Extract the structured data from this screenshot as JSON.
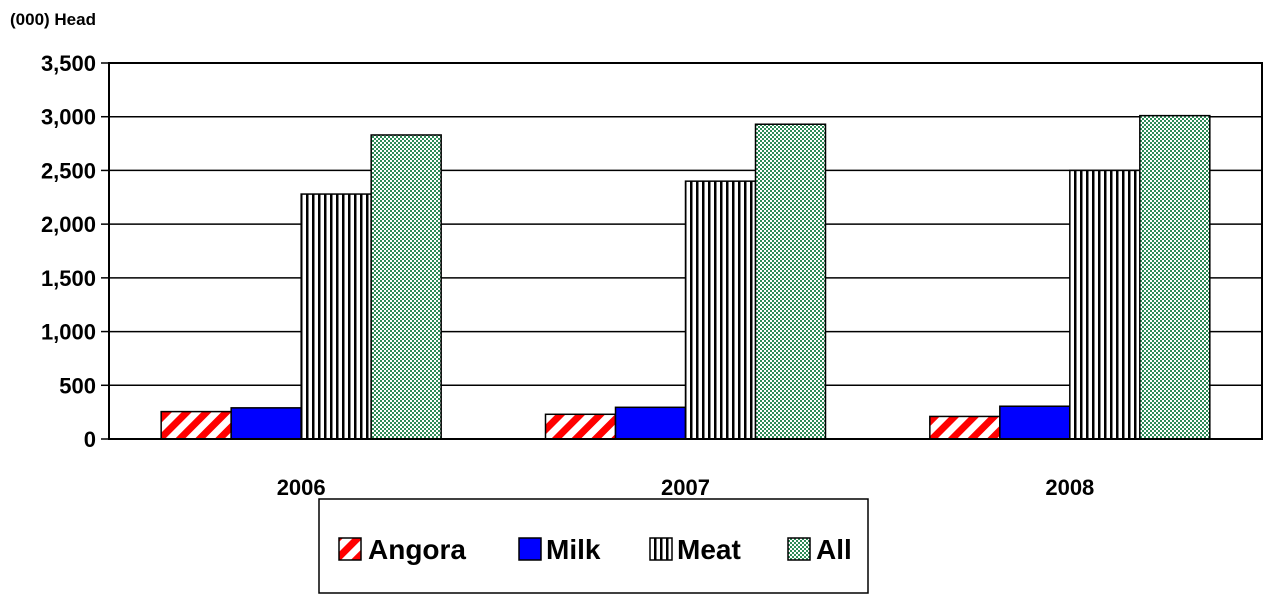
{
  "chart_data": {
    "type": "bar",
    "unit_label": "(000) Head",
    "categories": [
      "2006",
      "2007",
      "2008"
    ],
    "series": [
      {
        "name": "Angora",
        "values": [
          255,
          230,
          210
        ],
        "color": "#ff0000",
        "pattern": "diagonal-stripes"
      },
      {
        "name": "Milk",
        "values": [
          290,
          295,
          305
        ],
        "color": "#0000ff",
        "pattern": "solid"
      },
      {
        "name": "Meat",
        "values": [
          2280,
          2400,
          2500
        ],
        "color": "#000000",
        "pattern": "vertical-stripes"
      },
      {
        "name": "All",
        "values": [
          2830,
          2930,
          3010
        ],
        "color": "#2e8b57",
        "pattern": "checkerboard"
      }
    ],
    "ylim": [
      0,
      3500
    ],
    "yticks": [
      0,
      500,
      1000,
      1500,
      2000,
      2500,
      3000,
      3500
    ],
    "ytick_labels": [
      "0",
      "500",
      "1,000",
      "1,500",
      "2,000",
      "2,500",
      "3,000",
      "3,500"
    ],
    "grid": true,
    "legend_position": "bottom"
  }
}
